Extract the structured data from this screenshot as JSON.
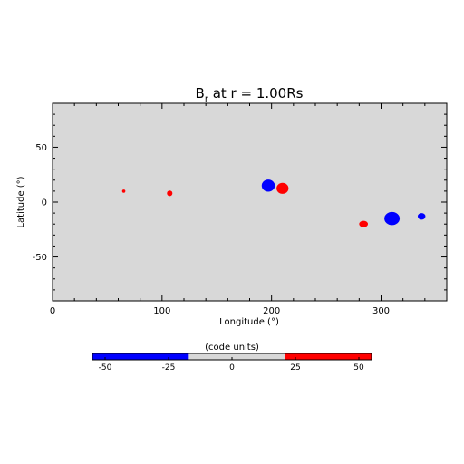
{
  "chart_data": {
    "type": "heatmap",
    "title": "B",
    "title_sub": "r",
    "title_rest": " at r = 1.00Rs",
    "xlabel": "Longitude (°)",
    "ylabel": "Latitude (°)",
    "xlim": [
      0,
      360
    ],
    "ylim": [
      -90,
      90
    ],
    "x_ticks": [
      0,
      100,
      200,
      300
    ],
    "y_ticks": [
      -50,
      0,
      50
    ],
    "background_color": "#d8d8d8",
    "features": [
      {
        "polarity": "positive",
        "color": "#ff0000",
        "lon": 65,
        "lat": 10,
        "rx": 1.5,
        "ry": 1.5
      },
      {
        "polarity": "positive",
        "color": "#ff0000",
        "lon": 107,
        "lat": 8,
        "rx": 2.5,
        "ry": 2.5
      },
      {
        "polarity": "negative",
        "color": "#0000ff",
        "lon": 197,
        "lat": 15,
        "rx": 6,
        "ry": 5.5
      },
      {
        "polarity": "positive",
        "color": "#ff0000",
        "lon": 210,
        "lat": 12.5,
        "rx": 5.5,
        "ry": 5
      },
      {
        "polarity": "positive",
        "color": "#ff0000",
        "lon": 284,
        "lat": -20,
        "rx": 4,
        "ry": 3
      },
      {
        "polarity": "negative",
        "color": "#0000ff",
        "lon": 310,
        "lat": -15,
        "rx": 7,
        "ry": 6
      },
      {
        "polarity": "negative",
        "color": "#0000ff",
        "lon": 337,
        "lat": -13,
        "rx": 3.5,
        "ry": 3
      }
    ],
    "colorbar": {
      "label": "(code units)",
      "range": [
        -55,
        55
      ],
      "ticks": [
        -50,
        -25,
        0,
        25,
        50
      ],
      "segments": [
        {
          "from": -55,
          "to": -17,
          "color": "#0000ff"
        },
        {
          "from": -17,
          "to": 21,
          "color": "#d8d8d8"
        },
        {
          "from": 21,
          "to": 55,
          "color": "#ff0000"
        }
      ]
    }
  }
}
